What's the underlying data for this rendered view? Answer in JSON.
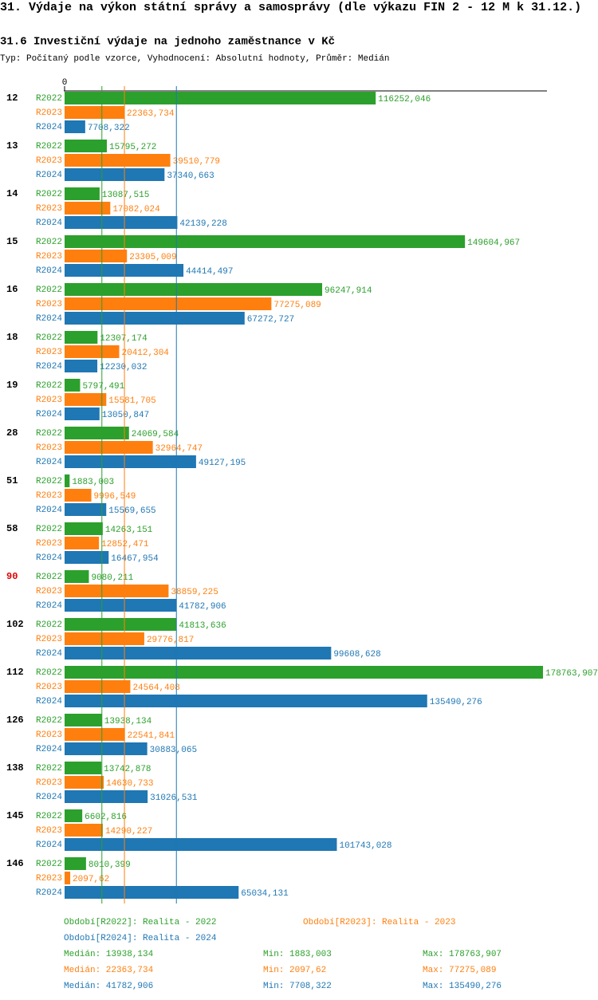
{
  "chart_data": {
    "type": "bar",
    "orientation": "horizontal",
    "title": "31. Výdaje na výkon státní správy a samosprávy (dle výkazu FIN 2 - 12 M k 31.12.)",
    "subtitle": "31.6 Investiční výdaje na jednoho zaměstnance v Kč",
    "description": "Typ: Počítaný podle vzorce, Vyhodnocení: Absolutní hodnoty, Průměr: Medián",
    "categories": [
      "12",
      "13",
      "14",
      "15",
      "16",
      "18",
      "19",
      "28",
      "51",
      "58",
      "90",
      "102",
      "112",
      "126",
      "138",
      "145",
      "146"
    ],
    "highlight_categories": [
      "90"
    ],
    "highlight_color": "#dd0000",
    "xlim": [
      0,
      178763.907
    ],
    "xticks": [
      0
    ],
    "series": [
      {
        "name": "R2022",
        "color": "#2ca02c",
        "legend_label": "Období[R2022]: Realita - 2022",
        "median": 13938.134,
        "median_label": "Medián: 13938,134",
        "min_label": "Min: 1883,003",
        "max_label": "Max: 178763,907",
        "values": [
          116252.046,
          15795.272,
          13087.515,
          149604.967,
          96247.914,
          12307.174,
          5797.491,
          24069.584,
          1883.003,
          14263.151,
          9080.211,
          41813.636,
          178763.907,
          13938.134,
          13742.878,
          6602.816,
          8010.399
        ],
        "value_labels": [
          "116252,046",
          "15795,272",
          "13087,515",
          "149604,967",
          "96247,914",
          "12307,174",
          "5797,491",
          "24069,584",
          "1883,003",
          "14263,151",
          "9080,211",
          "41813,636",
          "178763,907",
          "13938,134",
          "13742,878",
          "6602,816",
          "8010,399"
        ]
      },
      {
        "name": "R2023",
        "color": "#ff7f0e",
        "legend_label": "Období[R2023]: Realita - 2023",
        "median": 22363.734,
        "median_label": "Medián: 22363,734",
        "min_label": "Min: 2097,62",
        "max_label": "Max: 77275,089",
        "values": [
          22363.734,
          39510.779,
          17082.024,
          23305.009,
          77275.089,
          20412.304,
          15581.705,
          32964.747,
          9996.549,
          12852.471,
          38859.225,
          29776.817,
          24564.408,
          22541.841,
          14630.733,
          14290.227,
          2097.62
        ],
        "value_labels": [
          "22363,734",
          "39510,779",
          "17082,024",
          "23305,009",
          "77275,089",
          "20412,304",
          "15581,705",
          "32964,747",
          "9996,549",
          "12852,471",
          "38859,225",
          "29776,817",
          "24564,408",
          "22541,841",
          "14630,733",
          "14290,227",
          "2097,62"
        ]
      },
      {
        "name": "R2024",
        "color": "#1f77b4",
        "legend_label": "Období[R2024]: Realita - 2024",
        "median": 41782.906,
        "median_label": "Medián: 41782,906",
        "min_label": "Min: 7708,322",
        "max_label": "Max: 135490,276",
        "values": [
          7708.322,
          37340.663,
          42139.228,
          44414.497,
          67272.727,
          12230.032,
          13050.847,
          49127.195,
          15569.655,
          16467.954,
          41782.906,
          99608.628,
          135490.276,
          30883.065,
          31026.531,
          101743.028,
          65034.131
        ],
        "value_labels": [
          "7708,322",
          "37340,663",
          "42139,228",
          "44414,497",
          "67272,727",
          "12230,032",
          "13050,847",
          "49127,195",
          "15569,655",
          "16467,954",
          "41782,906",
          "99608,628",
          "135490,276",
          "30883,065",
          "31026,531",
          "101743,028",
          "65034,131"
        ]
      }
    ]
  }
}
